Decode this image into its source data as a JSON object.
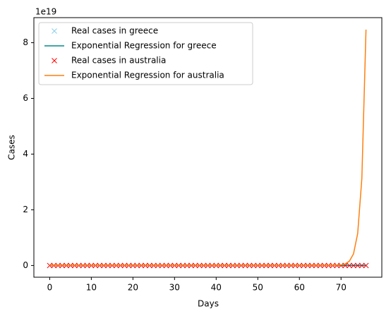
{
  "chart_data": {
    "type": "line",
    "x_label": "Days",
    "y_label": "Cases",
    "y_offset_label": "1e19",
    "x": [
      0,
      1,
      2,
      3,
      4,
      5,
      6,
      7,
      8,
      9,
      10,
      11,
      12,
      13,
      14,
      15,
      16,
      17,
      18,
      19,
      20,
      21,
      22,
      23,
      24,
      25,
      26,
      27,
      28,
      29,
      30,
      31,
      32,
      33,
      34,
      35,
      36,
      37,
      38,
      39,
      40,
      41,
      42,
      43,
      44,
      45,
      46,
      47,
      48,
      49,
      50,
      51,
      52,
      53,
      54,
      55,
      56,
      57,
      58,
      59,
      60,
      61,
      62,
      63,
      64,
      65,
      66,
      67,
      68,
      69,
      70,
      71,
      72,
      73,
      74,
      75,
      76
    ],
    "xlim": [
      -3.8,
      79.8
    ],
    "xticks": [
      0,
      10,
      20,
      30,
      40,
      50,
      60,
      70
    ],
    "ylim": [
      -0.42,
      8.9
    ],
    "yticks": [
      0,
      2,
      4,
      6,
      8
    ],
    "legend": "upper left",
    "series": [
      {
        "name": "Real cases in greece",
        "color": "#87ceeb",
        "style": "marker",
        "values": [
          0,
          0,
          0,
          0,
          0,
          0,
          0,
          0,
          0,
          0,
          0,
          0,
          0,
          0,
          0,
          0,
          0,
          0,
          0,
          0,
          0,
          0,
          0,
          0,
          0,
          0,
          0,
          0,
          0,
          0,
          0,
          0,
          0,
          0,
          0,
          0,
          0,
          0,
          0,
          0,
          0,
          0,
          0,
          0,
          0,
          0,
          0,
          0,
          0,
          0,
          0,
          0,
          0,
          0,
          0,
          0,
          0,
          0,
          0,
          0,
          0,
          0,
          0,
          0,
          0,
          0,
          0,
          0,
          0,
          0,
          0,
          0,
          0,
          0,
          0,
          0,
          0
        ]
      },
      {
        "name": "Exponential Regression for greece",
        "color": "#008b8b",
        "style": "line",
        "values": [
          0,
          0,
          0,
          0,
          0,
          0,
          0,
          0,
          0,
          0,
          0,
          0,
          0,
          0,
          0,
          0,
          0,
          0,
          0,
          0,
          0,
          0,
          0,
          0,
          0,
          0,
          0,
          0,
          0,
          0,
          0,
          0,
          0,
          0,
          0,
          0,
          0,
          0,
          0,
          0,
          0,
          0,
          0,
          0,
          0,
          0,
          0,
          0,
          0,
          0,
          0,
          0,
          0,
          0,
          0,
          0,
          0,
          0,
          0,
          0,
          0,
          0,
          0,
          0,
          0,
          0,
          0,
          0,
          0,
          0,
          0,
          0,
          0,
          0,
          0,
          0,
          0
        ]
      },
      {
        "name": "Real cases in australia",
        "color": "#ff0000",
        "style": "marker",
        "values": [
          0,
          0,
          0,
          0,
          0,
          0,
          0,
          0,
          0,
          0,
          0,
          0,
          0,
          0,
          0,
          0,
          0,
          0,
          0,
          0,
          0,
          0,
          0,
          0,
          0,
          0,
          0,
          0,
          0,
          0,
          0,
          0,
          0,
          0,
          0,
          0,
          0,
          0,
          0,
          0,
          0,
          0,
          0,
          0,
          0,
          0,
          0,
          0,
          0,
          0,
          0,
          0,
          0,
          0,
          0,
          0,
          0,
          0,
          0,
          0,
          0,
          0,
          0,
          0,
          0,
          0,
          0,
          0,
          0,
          0,
          0,
          0,
          0,
          0,
          0,
          0,
          0
        ]
      },
      {
        "name": "Exponential Regression for australia",
        "color": "#ff7f0e",
        "style": "line",
        "values": [
          0,
          0,
          0,
          0,
          0,
          0,
          0,
          0,
          0,
          0,
          0,
          0,
          0,
          0,
          0,
          0,
          0,
          0,
          0,
          0,
          0,
          0,
          0,
          0,
          0,
          0,
          0,
          0,
          0,
          0,
          0,
          0,
          0,
          0,
          0,
          0,
          0,
          0,
          0,
          0,
          0,
          0,
          0,
          0,
          0,
          0,
          0,
          0,
          0,
          0,
          0,
          0,
          0,
          0,
          0,
          0,
          0,
          0,
          0,
          0,
          0,
          0,
          0,
          0,
          0,
          0,
          0,
          0,
          0.0028,
          0.0077,
          0.021,
          0.057,
          0.155,
          0.42,
          1.15,
          3.12,
          8.47
        ]
      }
    ]
  }
}
